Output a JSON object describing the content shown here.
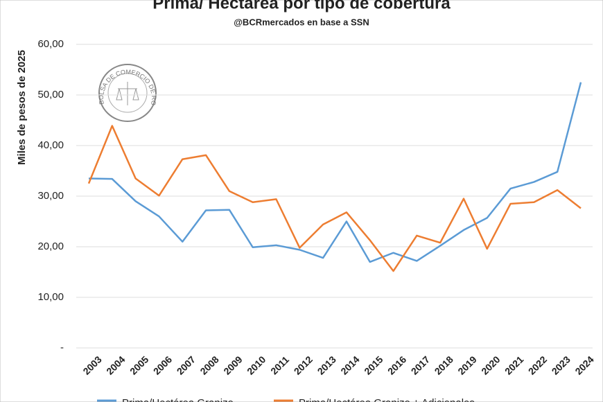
{
  "chart_data": {
    "type": "line",
    "title": "Prima/ Hectárea por tipo de cobertura",
    "subtitle": "@BCRmercados en base a SSN",
    "y_label": "Miles de pesos de 2025",
    "logo_text": "BOLSA DE COMERCIO DE ROSARIO",
    "categories": [
      "2003",
      "2004",
      "2005",
      "2006",
      "2007",
      "2008",
      "2009",
      "2010",
      "2011",
      "2012",
      "2013",
      "2014",
      "2015",
      "2016",
      "2017",
      "2018",
      "2019",
      "2020",
      "2021",
      "2022",
      "2023",
      "2024"
    ],
    "series": [
      {
        "name": "Prima/Hectárea Granizo",
        "color": "#5b9bd5",
        "values": [
          33.5,
          33.4,
          29,
          26,
          21,
          27.2,
          27.3,
          19.9,
          20.3,
          19.4,
          17.8,
          25,
          17,
          18.8,
          17.2,
          20.2,
          23.3,
          25.7,
          31.5,
          32.8,
          34.8,
          52.5
        ]
      },
      {
        "name": "Prima/Hectárea Granizo + Adicionales",
        "color": "#ed7d31",
        "values": [
          32.5,
          43.9,
          33.5,
          30.1,
          37.3,
          38.1,
          31,
          28.8,
          29.4,
          19.8,
          24.4,
          26.8,
          21.3,
          15.2,
          22.2,
          20.8,
          29.5,
          19.6,
          28.5,
          28.8,
          31.2,
          27.6
        ]
      }
    ],
    "ylim": [
      0,
      60
    ],
    "yticks": [
      {
        "value": 0,
        "label": "-"
      },
      {
        "value": 10,
        "label": "10,00"
      },
      {
        "value": 20,
        "label": "20,00"
      },
      {
        "value": 30,
        "label": "30,00"
      },
      {
        "value": 40,
        "label": "40,00"
      },
      {
        "value": 50,
        "label": "50,00"
      },
      {
        "value": 60,
        "label": "60,00"
      }
    ],
    "grid": true,
    "legend": "bottom"
  }
}
